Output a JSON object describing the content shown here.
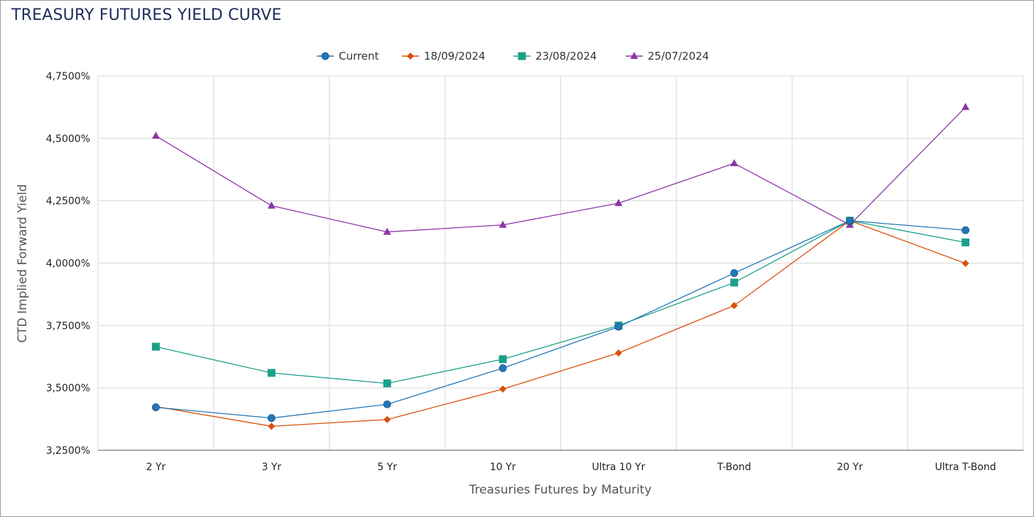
{
  "page": {
    "title": "TREASURY FUTURES YIELD CURVE"
  },
  "chart_data": {
    "type": "line",
    "title": "TREASURY FUTURES YIELD CURVE",
    "xlabel": "Treasuries Futures by Maturity",
    "ylabel": "CTD Implied Forward Yield",
    "categories": [
      "2 Yr",
      "3 Yr",
      "5 Yr",
      "10 Yr",
      "Ultra 10 Yr",
      "T-Bond",
      "20 Yr",
      "Ultra T-Bond"
    ],
    "ylim": [
      3.25,
      4.75
    ],
    "yticks": [
      3.25,
      3.5,
      3.75,
      4.0,
      4.25,
      4.5,
      4.75
    ],
    "ytick_labels": [
      "3,2500%",
      "3,5000%",
      "3,7500%",
      "4,0000%",
      "4,2500%",
      "4,5000%",
      "4,7500%"
    ],
    "grid": true,
    "legend_position": "top-center",
    "series": [
      {
        "name": "Current",
        "color": "#2277bb",
        "marker": "circle",
        "values": [
          3.422,
          3.379,
          3.434,
          3.579,
          3.745,
          3.96,
          4.17,
          4.132
        ]
      },
      {
        "name": "18/09/2024",
        "color": "#d94f0a",
        "marker": "diamond",
        "values": [
          3.425,
          3.346,
          3.373,
          3.495,
          3.64,
          3.83,
          4.17,
          3.999
        ]
      },
      {
        "name": "23/08/2024",
        "color": "#1aa08a",
        "marker": "square",
        "values": [
          3.665,
          3.56,
          3.518,
          3.615,
          3.75,
          3.922,
          4.17,
          4.083
        ]
      },
      {
        "name": "25/07/2024",
        "color": "#8b35a8",
        "marker": "triangle",
        "values": [
          4.51,
          4.23,
          4.125,
          4.153,
          4.24,
          4.4,
          4.153,
          4.625
        ]
      }
    ]
  }
}
